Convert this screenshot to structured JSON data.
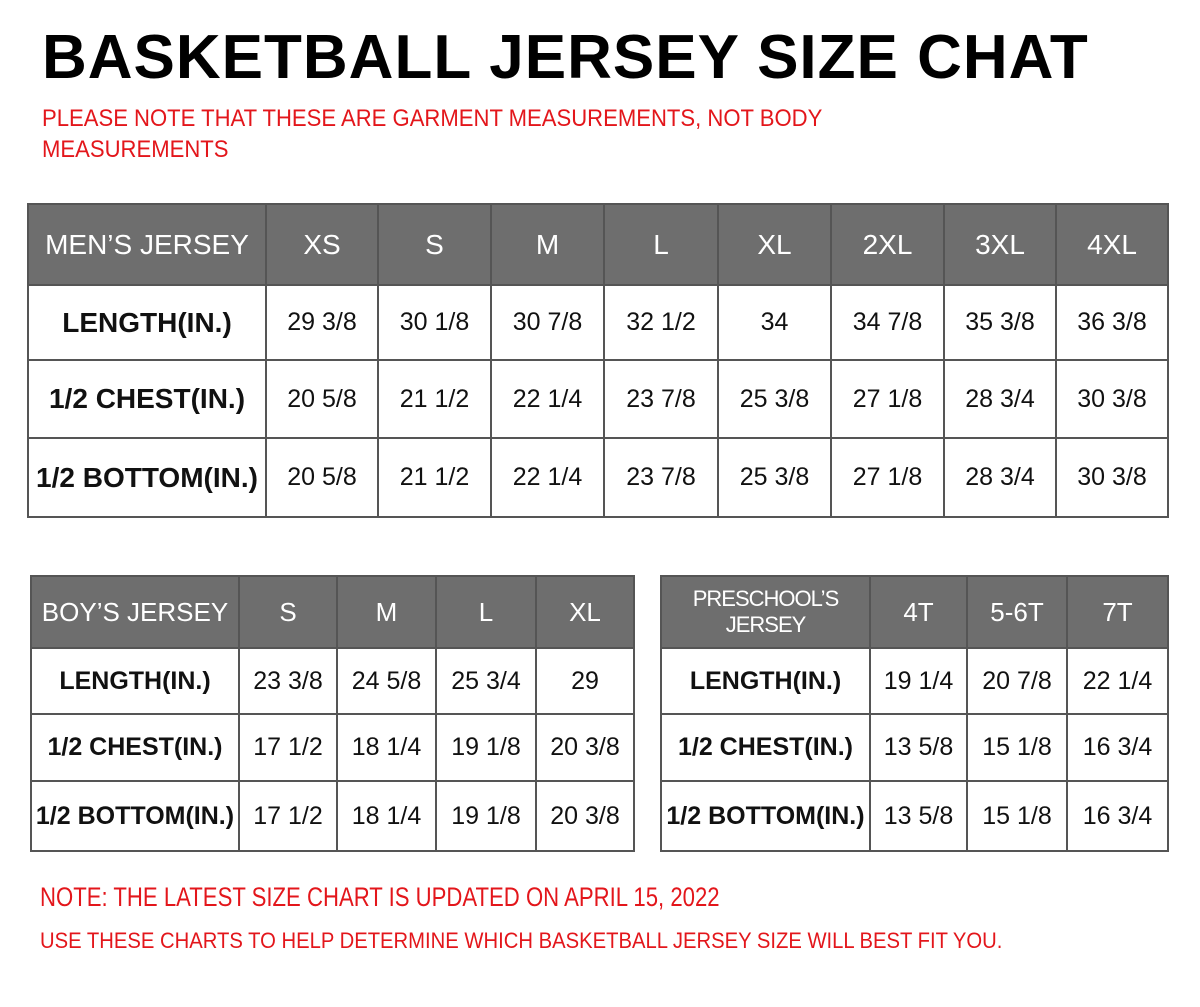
{
  "title": "BASKETBALL JERSEY SIZE CHAT",
  "note_top": "PLEASE NOTE THAT THESE ARE GARMENT MEASUREMENTS, NOT BODY MEASUREMENTS",
  "note_updated": "NOTE: THE LATEST SIZE CHART IS UPDATED ON APRIL 15, 2022",
  "note_use": "USE THESE CHARTS TO HELP DETERMINE WHICH  BASKETBALL JERSEY  SIZE WILL BEST FIT YOU.",
  "colors": {
    "header": "#6e6e6e",
    "note": "#e3161b"
  },
  "tables": {
    "men": {
      "headers": [
        "MEN’S JERSEY",
        "XS",
        "S",
        "M",
        "L",
        "XL",
        "2XL",
        "3XL",
        "4XL"
      ],
      "rows": [
        [
          "LENGTH(IN.)",
          "29  3/8",
          "30  1/8",
          "30  7/8",
          "32  1/2",
          "34",
          "34  7/8",
          "35  3/8",
          "36  3/8"
        ],
        [
          "1/2  CHEST(IN.)",
          "20  5/8",
          "21  1/2",
          "22  1/4",
          "23  7/8",
          "25  3/8",
          "27  1/8",
          "28  3/4",
          "30  3/8"
        ],
        [
          "1/2  BOTTOM(IN.)",
          "20  5/8",
          "21  1/2",
          "22  1/4",
          "23  7/8",
          "25  3/8",
          "27  1/8",
          "28  3/4",
          "30  3/8"
        ]
      ]
    },
    "boy": {
      "headers": [
        "BOY’S JERSEY",
        "S",
        "M",
        "L",
        "XL"
      ],
      "rows": [
        [
          "LENGTH(IN.)",
          "23  3/8",
          "24  5/8",
          "25  3/4",
          "29"
        ],
        [
          "1/2  CHEST(IN.)",
          "17  1/2",
          "18  1/4",
          "19  1/8",
          "20  3/8"
        ],
        [
          "1/2  BOTTOM(IN.)",
          "17  1/2",
          "18  1/4",
          "19  1/8",
          "20  3/8"
        ]
      ]
    },
    "pre": {
      "headers": [
        "PRESCHOOL’S JERSEY",
        "4T",
        "5-6T",
        "7T"
      ],
      "rows": [
        [
          "LENGTH(IN.)",
          "19  1/4",
          "20  7/8",
          "22  1/4"
        ],
        [
          "1/2  CHEST(IN.)",
          "13  5/8",
          "15  1/8",
          "16  3/4"
        ],
        [
          "1/2  BOTTOM(IN.)",
          "13  5/8",
          "15  1/8",
          "16  3/4"
        ]
      ]
    }
  }
}
